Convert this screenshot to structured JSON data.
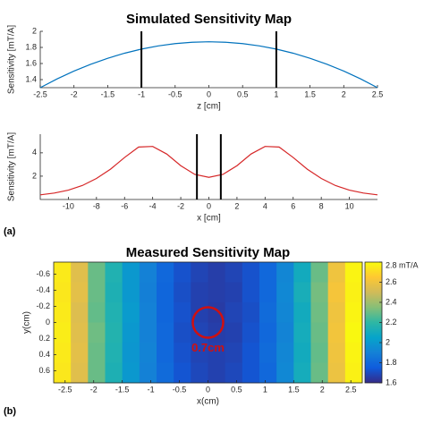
{
  "labels": [
    "(a)",
    "(b)"
  ],
  "chart_data": [
    {
      "type": "line",
      "title": "Simulated Sensitivity Map",
      "xlabel": "z [cm]",
      "ylabel": "Sensitivity [mT/A]",
      "x": [
        -2.5,
        -2.25,
        -2,
        -1.75,
        -1.5,
        -1.25,
        -1,
        -0.75,
        -0.5,
        -0.25,
        0,
        0.25,
        0.5,
        0.75,
        1,
        1.25,
        1.5,
        1.75,
        2,
        2.25,
        2.5
      ],
      "series": [
        {
          "color": "#0072bd",
          "values": [
            1.3,
            1.409,
            1.506,
            1.591,
            1.665,
            1.728,
            1.779,
            1.819,
            1.847,
            1.864,
            1.87,
            1.864,
            1.847,
            1.819,
            1.779,
            1.728,
            1.665,
            1.591,
            1.506,
            1.409,
            1.3
          ]
        }
      ],
      "vlines": [
        -1,
        1
      ],
      "vline_color": "#000000",
      "xlim": [
        -2.5,
        2.5
      ],
      "ylim": [
        1.3,
        2
      ],
      "xticks": [
        -2.5,
        -2,
        -1.5,
        -1,
        -0.5,
        0,
        0.5,
        1,
        1.5,
        2,
        2.5
      ],
      "yticks": [
        1.4,
        1.6,
        1.8,
        2
      ]
    },
    {
      "type": "line",
      "xlabel": "x [cm]",
      "ylabel": "Sensitivity [mT/A]",
      "x": [
        -12,
        -11,
        -10,
        -9,
        -8,
        -7,
        -6,
        -5,
        -4,
        -3,
        -2,
        -1,
        0,
        1,
        2,
        3,
        4,
        5,
        6,
        7,
        8,
        9,
        10,
        11,
        12
      ],
      "series": [
        {
          "color": "#d62728",
          "values": [
            0.4,
            0.55,
            0.8,
            1.2,
            1.8,
            2.6,
            3.6,
            4.5,
            4.55,
            3.9,
            2.9,
            2.15,
            1.9,
            2.15,
            2.9,
            3.9,
            4.55,
            4.5,
            3.6,
            2.6,
            1.8,
            1.2,
            0.8,
            0.55,
            0.4
          ]
        }
      ],
      "vlines": [
        -0.85,
        0.85
      ],
      "vline_color": "#000000",
      "xlim": [
        -12,
        12
      ],
      "ylim": [
        0,
        5.6
      ],
      "xticks": [
        -10,
        -8,
        -6,
        -4,
        -2,
        0,
        2,
        4,
        6,
        8,
        10
      ],
      "yticks": [
        2,
        4
      ]
    },
    {
      "type": "heatmap",
      "title": "Measured Sensitivity Map",
      "xlabel": "x(cm)",
      "ylabel": "y(cm)",
      "annotation": "0.7cm",
      "x": [
        -2.55,
        -2.25,
        -1.95,
        -1.65,
        -1.35,
        -1.05,
        -0.75,
        -0.45,
        -0.15,
        0.15,
        0.45,
        0.75,
        1.05,
        1.35,
        1.65,
        1.95,
        2.25,
        2.55
      ],
      "y": [
        -0.625,
        -0.375,
        -0.125,
        0.125,
        0.375,
        0.625
      ],
      "z": [
        [
          2.75,
          2.55,
          2.3,
          2.15,
          2.0,
          1.9,
          1.8,
          1.72,
          1.68,
          1.66,
          1.68,
          1.72,
          1.8,
          1.92,
          2.1,
          2.3,
          2.6,
          2.78
        ],
        [
          2.74,
          2.56,
          2.3,
          2.14,
          2.0,
          1.89,
          1.79,
          1.71,
          1.67,
          1.66,
          1.67,
          1.72,
          1.8,
          1.93,
          2.12,
          2.32,
          2.62,
          2.77
        ],
        [
          2.75,
          2.54,
          2.29,
          2.15,
          2.01,
          1.9,
          1.79,
          1.72,
          1.67,
          1.65,
          1.68,
          1.71,
          1.81,
          1.92,
          2.1,
          2.31,
          2.6,
          2.78
        ],
        [
          2.76,
          2.55,
          2.31,
          2.16,
          2.0,
          1.9,
          1.8,
          1.71,
          1.68,
          1.66,
          1.67,
          1.72,
          1.8,
          1.91,
          2.11,
          2.3,
          2.61,
          2.79
        ],
        [
          2.75,
          2.56,
          2.3,
          2.15,
          1.99,
          1.91,
          1.8,
          1.72,
          1.68,
          1.67,
          1.68,
          1.73,
          1.81,
          1.92,
          2.1,
          2.29,
          2.6,
          2.78
        ],
        [
          2.74,
          2.55,
          2.3,
          2.14,
          2.0,
          1.9,
          1.81,
          1.73,
          1.69,
          1.67,
          1.69,
          1.73,
          1.8,
          1.93,
          2.11,
          2.3,
          2.59,
          2.77
        ]
      ],
      "xlim": [
        -2.7,
        2.7
      ],
      "ylim": [
        -0.75,
        0.75
      ],
      "y_reversed": true,
      "xticks": [
        -2.5,
        -2,
        -1.5,
        -1,
        -0.5,
        0,
        0.5,
        1,
        1.5,
        2,
        2.5
      ],
      "yticks": [
        -0.6,
        -0.4,
        -0.2,
        0,
        0.2,
        0.4,
        0.6
      ],
      "clim": [
        1.6,
        2.8
      ],
      "cticks": [
        1.6,
        1.8,
        2,
        2.2,
        2.4,
        2.6,
        {
          "value": 2.8,
          "label": "2.8 mT/A"
        }
      ],
      "colormap": [
        "#352a87",
        "#0f5cdd",
        "#1481d6",
        "#06a4ca",
        "#2eb7a4",
        "#87bf77",
        "#d1bb59",
        "#fec832",
        "#f9fb0e"
      ],
      "annotation_color": "#d01010"
    }
  ]
}
